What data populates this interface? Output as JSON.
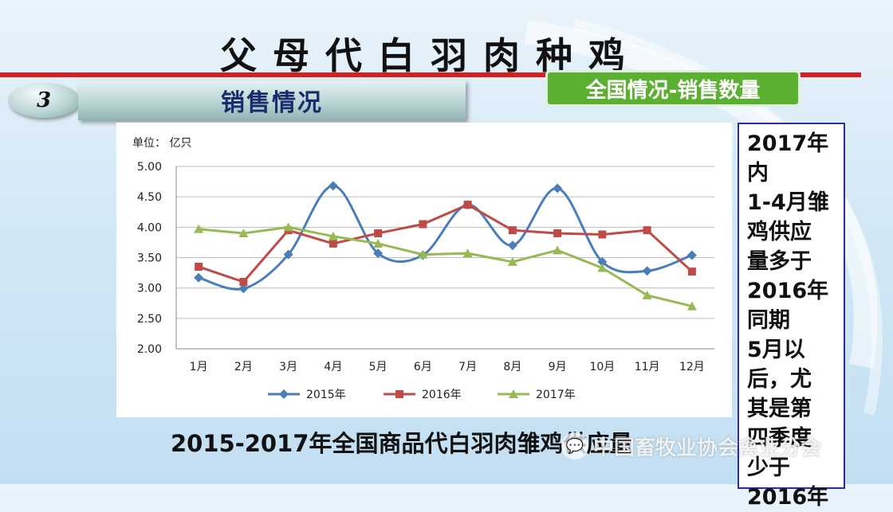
{
  "slide": {
    "title": "父母代白羽肉种鸡",
    "section_number": "3",
    "section_title": "销售情况",
    "tag": "全国情况-销售数量",
    "caption": "2015-2017年全国商品代白羽肉雏鸡供应量",
    "watermark": "中国畜牧业协会禽业分会",
    "side_note": [
      "2017年",
      "内",
      "1-4月雏",
      "鸡供应",
      "量多于",
      "2016年",
      "同期",
      "5月以",
      "后，尤",
      "其是第",
      "四季度",
      "少于",
      "2016年"
    ]
  },
  "chart_data": {
    "type": "line",
    "unit_label": "单位： 亿只",
    "categories": [
      "1月",
      "2月",
      "3月",
      "4月",
      "5月",
      "6月",
      "7月",
      "8月",
      "9月",
      "10月",
      "11月",
      "12月"
    ],
    "ylim": [
      2.0,
      5.0
    ],
    "yticks": [
      "5.00",
      "4.50",
      "4.00",
      "3.50",
      "3.00",
      "2.50",
      "2.00"
    ],
    "legend_position": "bottom",
    "series": [
      {
        "name": "2015年",
        "color": "#4a7ebb",
        "marker": "diamond",
        "smooth": true,
        "values": [
          3.17,
          2.99,
          3.55,
          4.68,
          3.57,
          3.54,
          4.37,
          3.7,
          4.64,
          3.43,
          3.28,
          3.54
        ]
      },
      {
        "name": "2016年",
        "color": "#be4b48",
        "marker": "square",
        "smooth": false,
        "values": [
          3.35,
          3.1,
          3.95,
          3.73,
          3.9,
          4.05,
          4.37,
          3.95,
          3.9,
          3.88,
          3.95,
          3.27
        ]
      },
      {
        "name": "2017年",
        "color": "#98b954",
        "marker": "triangle",
        "smooth": false,
        "values": [
          3.97,
          3.9,
          4.0,
          3.85,
          3.73,
          3.55,
          3.57,
          3.43,
          3.62,
          3.33,
          2.88,
          2.7
        ]
      }
    ]
  }
}
